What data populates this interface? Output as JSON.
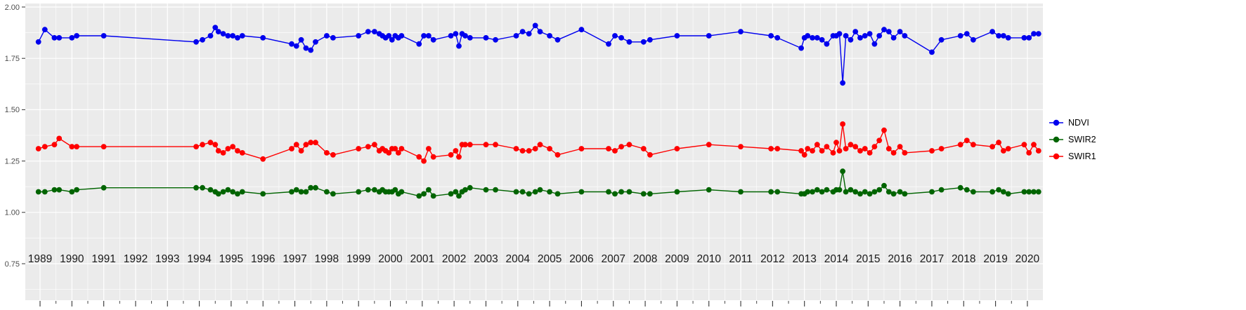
{
  "chart_data": {
    "type": "line",
    "title": "",
    "xlabel": "",
    "ylabel": "",
    "grid": true,
    "legend_position": "right",
    "panel_bg": "#EBEBEB",
    "grid_color": "#FFFFFF",
    "axis_text_color": "#4D4D4D",
    "x_tick_label_color": "#1A1A1A",
    "xlim": [
      1988.54,
      2020.5
    ],
    "ylim": [
      0.56,
      2.02
    ],
    "y_ticks": [
      0.75,
      1.0,
      1.25,
      1.5,
      1.75,
      2.0
    ],
    "y_tick_labels": [
      "0.75",
      "1.00",
      "1.25",
      "1.50",
      "1.75",
      "2.00"
    ],
    "y_minor_ticks": [
      0.625,
      0.875,
      1.125,
      1.375,
      1.625,
      1.875
    ],
    "x_ticks": [
      1989,
      1990,
      1991,
      1992,
      1993,
      1994,
      1995,
      1996,
      1997,
      1998,
      1999,
      2000,
      2001,
      2002,
      2003,
      2004,
      2005,
      2006,
      2007,
      2008,
      2009,
      2010,
      2011,
      2012,
      2013,
      2014,
      2015,
      2016,
      2017,
      2018,
      2019,
      2020
    ],
    "x_tick_labels": [
      "1989",
      "1990",
      "1991",
      "1992",
      "1993",
      "1994",
      "1995",
      "1996",
      "1997",
      "1998",
      "1999",
      "2000",
      "2001",
      "2002",
      "2003",
      "2004",
      "2005",
      "2006",
      "2007",
      "2008",
      "2009",
      "2010",
      "2011",
      "2012",
      "2013",
      "2014",
      "2015",
      "2016",
      "2017",
      "2018",
      "2019",
      "2020"
    ],
    "x": [
      1988.95,
      1989.15,
      1989.45,
      1989.6,
      1990.0,
      1990.15,
      1991.0,
      1993.9,
      1994.1,
      1994.35,
      1994.5,
      1994.6,
      1994.75,
      1994.9,
      1995.05,
      1995.2,
      1995.35,
      1996.0,
      1996.9,
      1997.05,
      1997.2,
      1997.35,
      1997.5,
      1997.65,
      1998.0,
      1998.2,
      1999.0,
      1999.3,
      1999.5,
      1999.65,
      1999.75,
      1999.85,
      1999.95,
      2000.05,
      2000.15,
      2000.25,
      2000.35,
      2000.9,
      2001.05,
      2001.2,
      2001.35,
      2001.9,
      2002.05,
      2002.15,
      2002.25,
      2002.35,
      2002.5,
      2003.0,
      2003.3,
      2003.95,
      2004.15,
      2004.35,
      2004.55,
      2004.7,
      2005.0,
      2005.25,
      2006.0,
      2006.85,
      2007.05,
      2007.25,
      2007.5,
      2007.95,
      2008.15,
      2009.0,
      2010.0,
      2011.0,
      2011.95,
      2012.15,
      2012.9,
      2013.0,
      2013.1,
      2013.25,
      2013.4,
      2013.55,
      2013.7,
      2013.9,
      2014.0,
      2014.1,
      2014.2,
      2014.3,
      2014.45,
      2014.6,
      2014.75,
      2014.9,
      2015.05,
      2015.2,
      2015.35,
      2015.5,
      2015.65,
      2015.8,
      2016.0,
      2016.15,
      2017.0,
      2017.3,
      2017.9,
      2018.1,
      2018.3,
      2018.9,
      2019.1,
      2019.25,
      2019.4,
      2019.9,
      2020.05,
      2020.2,
      2020.35
    ],
    "series": [
      {
        "name": "NDVI",
        "color": "#0000EE",
        "values": [
          1.83,
          1.89,
          1.85,
          1.85,
          1.85,
          1.86,
          1.86,
          1.83,
          1.84,
          1.86,
          1.9,
          1.88,
          1.87,
          1.86,
          1.86,
          1.85,
          1.86,
          1.85,
          1.82,
          1.81,
          1.84,
          1.8,
          1.79,
          1.83,
          1.86,
          1.85,
          1.86,
          1.88,
          1.88,
          1.87,
          1.86,
          1.85,
          1.86,
          1.84,
          1.86,
          1.85,
          1.86,
          1.82,
          1.86,
          1.86,
          1.84,
          1.86,
          1.87,
          1.81,
          1.87,
          1.86,
          1.85,
          1.85,
          1.84,
          1.86,
          1.88,
          1.87,
          1.91,
          1.88,
          1.86,
          1.84,
          1.89,
          1.82,
          1.86,
          1.85,
          1.83,
          1.83,
          1.84,
          1.86,
          1.86,
          1.88,
          1.86,
          1.85,
          1.8,
          1.85,
          1.86,
          1.85,
          1.85,
          1.84,
          1.82,
          1.86,
          1.86,
          1.87,
          1.63,
          1.86,
          1.84,
          1.88,
          1.85,
          1.86,
          1.87,
          1.82,
          1.86,
          1.89,
          1.88,
          1.85,
          1.88,
          1.86,
          1.78,
          1.84,
          1.86,
          1.87,
          1.84,
          1.88,
          1.86,
          1.86,
          1.85,
          1.85,
          1.85,
          1.87,
          1.87
        ]
      },
      {
        "name": "SWIR2",
        "color": "#006400",
        "values": [
          1.1,
          1.1,
          1.11,
          1.11,
          1.1,
          1.11,
          1.12,
          1.12,
          1.12,
          1.11,
          1.1,
          1.09,
          1.1,
          1.11,
          1.1,
          1.09,
          1.1,
          1.09,
          1.1,
          1.11,
          1.1,
          1.1,
          1.12,
          1.12,
          1.1,
          1.09,
          1.1,
          1.11,
          1.11,
          1.1,
          1.11,
          1.1,
          1.1,
          1.1,
          1.11,
          1.09,
          1.1,
          1.08,
          1.09,
          1.11,
          1.08,
          1.09,
          1.1,
          1.08,
          1.1,
          1.11,
          1.12,
          1.11,
          1.11,
          1.1,
          1.1,
          1.09,
          1.1,
          1.11,
          1.1,
          1.09,
          1.1,
          1.1,
          1.09,
          1.1,
          1.1,
          1.09,
          1.09,
          1.1,
          1.11,
          1.1,
          1.1,
          1.1,
          1.09,
          1.09,
          1.1,
          1.1,
          1.11,
          1.1,
          1.11,
          1.1,
          1.11,
          1.11,
          1.2,
          1.1,
          1.11,
          1.1,
          1.09,
          1.1,
          1.09,
          1.1,
          1.11,
          1.13,
          1.1,
          1.09,
          1.1,
          1.09,
          1.1,
          1.11,
          1.12,
          1.11,
          1.1,
          1.1,
          1.11,
          1.1,
          1.09,
          1.1,
          1.1,
          1.1,
          1.1
        ]
      },
      {
        "name": "SWIR1",
        "color": "#FF0000",
        "values": [
          1.31,
          1.32,
          1.33,
          1.36,
          1.32,
          1.32,
          1.32,
          1.32,
          1.33,
          1.34,
          1.33,
          1.3,
          1.29,
          1.31,
          1.32,
          1.3,
          1.29,
          1.26,
          1.31,
          1.33,
          1.3,
          1.33,
          1.34,
          1.34,
          1.29,
          1.28,
          1.31,
          1.32,
          1.33,
          1.3,
          1.31,
          1.3,
          1.29,
          1.31,
          1.31,
          1.29,
          1.31,
          1.27,
          1.25,
          1.31,
          1.27,
          1.28,
          1.3,
          1.27,
          1.33,
          1.33,
          1.33,
          1.33,
          1.33,
          1.31,
          1.3,
          1.3,
          1.31,
          1.33,
          1.31,
          1.28,
          1.31,
          1.31,
          1.3,
          1.32,
          1.33,
          1.31,
          1.28,
          1.31,
          1.33,
          1.32,
          1.31,
          1.31,
          1.3,
          1.28,
          1.31,
          1.3,
          1.33,
          1.3,
          1.32,
          1.29,
          1.34,
          1.3,
          1.43,
          1.31,
          1.33,
          1.32,
          1.3,
          1.31,
          1.29,
          1.32,
          1.35,
          1.4,
          1.31,
          1.29,
          1.32,
          1.29,
          1.3,
          1.31,
          1.33,
          1.35,
          1.33,
          1.32,
          1.34,
          1.3,
          1.31,
          1.33,
          1.29,
          1.33,
          1.3
        ]
      }
    ],
    "legend": {
      "items": [
        {
          "label": "NDVI",
          "color": "#0000EE"
        },
        {
          "label": "SWIR2",
          "color": "#006400"
        },
        {
          "label": "SWIR1",
          "color": "#FF0000"
        }
      ]
    }
  }
}
